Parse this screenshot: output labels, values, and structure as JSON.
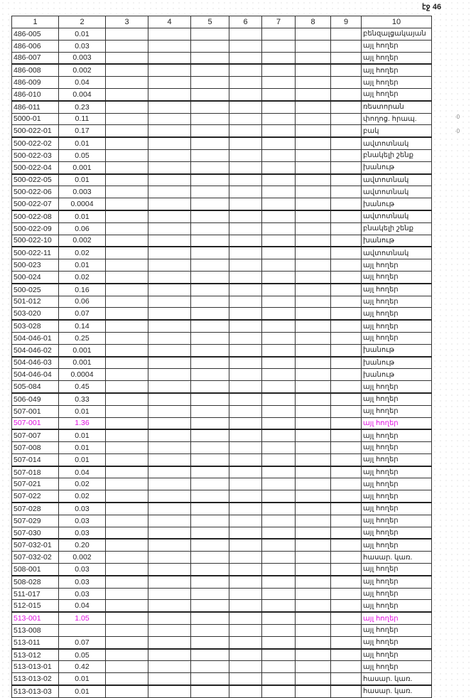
{
  "page_label": "էջ 46",
  "headers": [
    "1",
    "2",
    "3",
    "4",
    "5",
    "6",
    "7",
    "8",
    "9",
    "10"
  ],
  "highlight_color": "#e010e0",
  "rows": [
    {
      "code": "486-005",
      "area": "0.01",
      "use": "բենզալցակայան"
    },
    {
      "code": "486-006",
      "area": "0.03",
      "use": "այլ հողեր"
    },
    {
      "code": "486-007",
      "area": "0.003",
      "use": "այլ հողեր"
    },
    {
      "code": "486-008",
      "area": "0.002",
      "use": "այլ հողեր"
    },
    {
      "code": "486-009",
      "area": "0.04",
      "use": "այլ հողեր"
    },
    {
      "code": "486-010",
      "area": "0.004",
      "use": "այլ հողեր"
    },
    {
      "code": "486-011",
      "area": "0.23",
      "use": "ռեստորան"
    },
    {
      "code": "5000-01",
      "area": "0.11",
      "use": "փողոց. հրապ."
    },
    {
      "code": "500-022-01",
      "area": "0.17",
      "use": "բակ"
    },
    {
      "code": "500-022-02",
      "area": "0.01",
      "use": "ավտոտնակ"
    },
    {
      "code": "500-022-03",
      "area": "0.05",
      "use": "բնակելի շենք"
    },
    {
      "code": "500-022-04",
      "area": "0.001",
      "use": "խանութ"
    },
    {
      "code": "500-022-05",
      "area": "0.01",
      "use": "ավտոտնակ"
    },
    {
      "code": "500-022-06",
      "area": "0.003",
      "use": "ավտոտնակ"
    },
    {
      "code": "500-022-07",
      "area": "0.0004",
      "use": "խանութ"
    },
    {
      "code": "500-022-08",
      "area": "0.01",
      "use": "ավտոտնակ"
    },
    {
      "code": "500-022-09",
      "area": "0.06",
      "use": "բնակելի շենք"
    },
    {
      "code": "500-022-10",
      "area": "0.002",
      "use": "խանութ"
    },
    {
      "code": "500-022-11",
      "area": "0.02",
      "use": "ավտոտնակ"
    },
    {
      "code": "500-023",
      "area": "0.01",
      "use": "այլ հողեր"
    },
    {
      "code": "500-024",
      "area": "0.02",
      "use": "այլ հողեր"
    },
    {
      "code": "500-025",
      "area": "0.16",
      "use": "այլ հողեր"
    },
    {
      "code": "501-012",
      "area": "0.06",
      "use": "այլ հողեր"
    },
    {
      "code": "503-020",
      "area": "0.07",
      "use": "այլ հողեր"
    },
    {
      "code": "503-028",
      "area": "0.14",
      "use": "այլ հողեր"
    },
    {
      "code": "504-046-01",
      "area": "0.25",
      "use": "այլ հողեր"
    },
    {
      "code": "504-046-02",
      "area": "0.001",
      "use": "խանութ"
    },
    {
      "code": "504-046-03",
      "area": "0.001",
      "use": "խանութ"
    },
    {
      "code": "504-046-04",
      "area": "0.0004",
      "use": "խանութ"
    },
    {
      "code": "505-084",
      "area": "0.45",
      "use": "այլ հողեր"
    },
    {
      "code": "506-049",
      "area": "0.33",
      "use": "այլ հողեր"
    },
    {
      "code": "507-001",
      "area": "0.01",
      "use": "այլ հողեր"
    },
    {
      "code": "507-001",
      "area": "1.36",
      "use": "այլ հողեր",
      "highlight": true
    },
    {
      "code": "507-007",
      "area": "0.01",
      "use": "այլ հողեր"
    },
    {
      "code": "507-008",
      "area": "0.01",
      "use": "այլ հողեր"
    },
    {
      "code": "507-014",
      "area": "0.01",
      "use": "այլ հողեր"
    },
    {
      "code": "507-018",
      "area": "0.04",
      "use": "այլ հողեր"
    },
    {
      "code": "507-021",
      "area": "0.02",
      "use": "այլ հողեր"
    },
    {
      "code": "507-022",
      "area": "0.02",
      "use": "այլ հողեր"
    },
    {
      "code": "507-028",
      "area": "0.03",
      "use": "այլ հողեր"
    },
    {
      "code": "507-029",
      "area": "0.03",
      "use": "այլ հողեր"
    },
    {
      "code": "507-030",
      "area": "0.03",
      "use": "այլ հողեր"
    },
    {
      "code": "507-032-01",
      "area": "0.20",
      "use": "այլ հողեր"
    },
    {
      "code": "507-032-02",
      "area": "0.002",
      "use": "հասար. կառ."
    },
    {
      "code": "508-001",
      "area": "0.03",
      "use": "այլ հողեր"
    },
    {
      "code": "508-028",
      "area": "0.03",
      "use": "այլ հողեր"
    },
    {
      "code": "511-017",
      "area": "0.03",
      "use": "այլ հողեր"
    },
    {
      "code": "512-015",
      "area": "0.04",
      "use": "այլ հողեր"
    },
    {
      "code": "513-001",
      "area": "1.05",
      "use": "այլ հողեր",
      "highlight": true
    },
    {
      "code": "513-008",
      "area": "",
      "use": "այլ հողեր"
    },
    {
      "code": "513-011",
      "area": "0.07",
      "use": "այլ հողեր"
    },
    {
      "code": "513-012",
      "area": "0.05",
      "use": "այլ հողեր"
    },
    {
      "code": "513-013-01",
      "area": "0.42",
      "use": "այլ հողեր"
    },
    {
      "code": "513-013-02",
      "area": "0.01",
      "use": "հասար. կառ."
    },
    {
      "code": "513-013-03",
      "area": "0.01",
      "use": "հասար. կառ."
    }
  ]
}
